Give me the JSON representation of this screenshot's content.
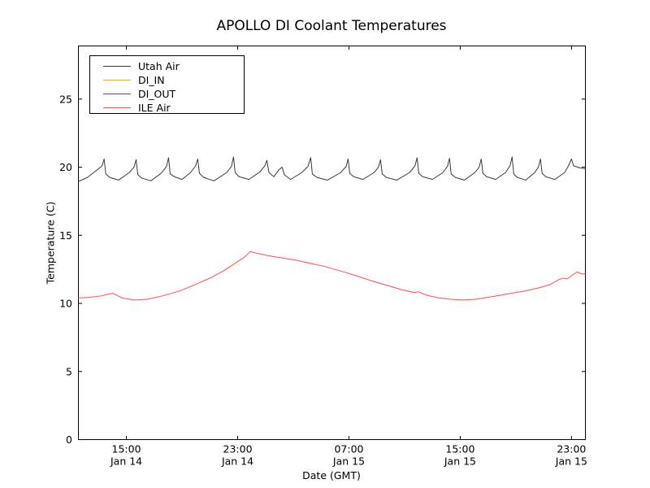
{
  "chart_data": {
    "type": "line",
    "title": "APOLLO DI Coolant Temperatures",
    "xlabel": "Date (GMT)",
    "ylabel": "Temperature (C)",
    "grid": false,
    "legend_position": "upper left",
    "x_unit": "hours since Jan 14 00:00 GMT",
    "xlim": [
      11.55,
      48.0
    ],
    "ylim": [
      0,
      28.9
    ],
    "x_ticks": [
      {
        "pos": 15,
        "time": "15:00",
        "date": "Jan 14"
      },
      {
        "pos": 23,
        "time": "23:00",
        "date": "Jan 14"
      },
      {
        "pos": 31,
        "time": "07:00",
        "date": "Jan 15"
      },
      {
        "pos": 39,
        "time": "15:00",
        "date": "Jan 15"
      },
      {
        "pos": 47,
        "time": "23:00",
        "date": "Jan 15"
      }
    ],
    "y_ticks": [
      {
        "pos": 0,
        "label": "0"
      },
      {
        "pos": 5,
        "label": "5"
      },
      {
        "pos": 10,
        "label": "10"
      },
      {
        "pos": 15,
        "label": "15"
      },
      {
        "pos": 20,
        "label": "20"
      },
      {
        "pos": 25,
        "label": "25"
      }
    ],
    "series": [
      {
        "name": "Utah Air",
        "color": "#3a3a3a",
        "points": [
          [
            11.55,
            18.95
          ],
          [
            12.2,
            19.25
          ],
          [
            12.9,
            19.8
          ],
          [
            13.25,
            20.1
          ],
          [
            13.4,
            20.6
          ],
          [
            13.52,
            19.5
          ],
          [
            13.8,
            19.25
          ],
          [
            14.44,
            19.05
          ],
          [
            15.2,
            19.6
          ],
          [
            15.55,
            20.0
          ],
          [
            15.7,
            20.55
          ],
          [
            15.82,
            19.45
          ],
          [
            16.1,
            19.2
          ],
          [
            16.75,
            19.0
          ],
          [
            17.5,
            19.55
          ],
          [
            17.88,
            20.05
          ],
          [
            18.03,
            20.7
          ],
          [
            18.15,
            19.5
          ],
          [
            18.45,
            19.3
          ],
          [
            19.0,
            19.1
          ],
          [
            19.6,
            19.6
          ],
          [
            19.98,
            20.1
          ],
          [
            20.13,
            20.6
          ],
          [
            20.25,
            19.55
          ],
          [
            20.55,
            19.25
          ],
          [
            21.3,
            19.0
          ],
          [
            22.2,
            19.6
          ],
          [
            22.55,
            20.05
          ],
          [
            22.7,
            20.75
          ],
          [
            22.82,
            19.6
          ],
          [
            23.1,
            19.3
          ],
          [
            23.8,
            19.1
          ],
          [
            24.6,
            19.65
          ],
          [
            24.95,
            20.1
          ],
          [
            25.1,
            20.5
          ],
          [
            25.25,
            19.6
          ],
          [
            25.6,
            19.3
          ],
          [
            25.95,
            19.8
          ],
          [
            26.2,
            20.0
          ],
          [
            26.35,
            19.45
          ],
          [
            26.8,
            19.1
          ],
          [
            27.6,
            19.6
          ],
          [
            28.05,
            20.05
          ],
          [
            28.25,
            20.7
          ],
          [
            28.37,
            19.5
          ],
          [
            28.7,
            19.25
          ],
          [
            29.45,
            19.05
          ],
          [
            30.4,
            19.6
          ],
          [
            30.8,
            20.05
          ],
          [
            30.94,
            20.6
          ],
          [
            31.06,
            19.55
          ],
          [
            31.35,
            19.3
          ],
          [
            32.0,
            19.1
          ],
          [
            32.8,
            19.6
          ],
          [
            33.12,
            20.0
          ],
          [
            33.27,
            20.55
          ],
          [
            33.39,
            19.5
          ],
          [
            33.7,
            19.25
          ],
          [
            34.45,
            19.05
          ],
          [
            35.35,
            19.6
          ],
          [
            35.75,
            20.1
          ],
          [
            35.9,
            20.7
          ],
          [
            36.02,
            19.55
          ],
          [
            36.3,
            19.3
          ],
          [
            37.0,
            19.1
          ],
          [
            37.75,
            19.6
          ],
          [
            38.08,
            20.05
          ],
          [
            38.23,
            20.65
          ],
          [
            38.35,
            19.5
          ],
          [
            38.65,
            19.25
          ],
          [
            39.3,
            19.05
          ],
          [
            40.05,
            19.6
          ],
          [
            40.36,
            20.0
          ],
          [
            40.51,
            20.6
          ],
          [
            40.63,
            19.55
          ],
          [
            40.9,
            19.3
          ],
          [
            41.55,
            19.1
          ],
          [
            42.25,
            19.6
          ],
          [
            42.58,
            20.1
          ],
          [
            42.73,
            20.75
          ],
          [
            42.85,
            19.5
          ],
          [
            43.1,
            19.25
          ],
          [
            43.7,
            19.05
          ],
          [
            44.35,
            19.6
          ],
          [
            44.62,
            20.0
          ],
          [
            44.77,
            20.6
          ],
          [
            44.89,
            19.55
          ],
          [
            45.15,
            19.3
          ],
          [
            45.8,
            19.1
          ],
          [
            46.5,
            19.6
          ],
          [
            46.78,
            20.1
          ],
          [
            47.0,
            20.6
          ],
          [
            47.15,
            20.1
          ],
          [
            47.6,
            19.95
          ],
          [
            48.0,
            19.88
          ]
        ]
      },
      {
        "name": "DI_IN",
        "color": "#ffa500",
        "points": []
      },
      {
        "name": "DI_OUT",
        "color": "#8b2fa8",
        "points": []
      },
      {
        "name": "ILE Air",
        "color": "#ff4d4d",
        "points": [
          [
            11.55,
            10.4
          ],
          [
            12.4,
            10.45
          ],
          [
            13.2,
            10.55
          ],
          [
            14.0,
            10.75
          ],
          [
            14.7,
            10.4
          ],
          [
            15.6,
            10.25
          ],
          [
            16.5,
            10.3
          ],
          [
            17.6,
            10.55
          ],
          [
            18.8,
            10.9
          ],
          [
            20.0,
            11.4
          ],
          [
            21.1,
            11.9
          ],
          [
            22.0,
            12.4
          ],
          [
            22.9,
            13.0
          ],
          [
            23.5,
            13.4
          ],
          [
            23.9,
            13.8
          ],
          [
            24.3,
            13.7
          ],
          [
            25.2,
            13.5
          ],
          [
            26.1,
            13.35
          ],
          [
            27.3,
            13.15
          ],
          [
            28.4,
            12.9
          ],
          [
            29.3,
            12.7
          ],
          [
            30.5,
            12.35
          ],
          [
            31.6,
            12.0
          ],
          [
            32.8,
            11.6
          ],
          [
            34.0,
            11.25
          ],
          [
            34.8,
            11.0
          ],
          [
            35.7,
            10.8
          ],
          [
            36.0,
            10.85
          ],
          [
            36.6,
            10.6
          ],
          [
            37.5,
            10.4
          ],
          [
            38.3,
            10.3
          ],
          [
            39.2,
            10.25
          ],
          [
            40.1,
            10.3
          ],
          [
            41.0,
            10.45
          ],
          [
            41.9,
            10.6
          ],
          [
            42.7,
            10.75
          ],
          [
            43.6,
            10.9
          ],
          [
            44.5,
            11.1
          ],
          [
            45.4,
            11.35
          ],
          [
            46.1,
            11.75
          ],
          [
            46.4,
            11.85
          ],
          [
            46.7,
            11.8
          ],
          [
            47.1,
            12.1
          ],
          [
            47.4,
            12.3
          ],
          [
            47.75,
            12.15
          ],
          [
            48.0,
            12.2
          ]
        ]
      }
    ]
  }
}
